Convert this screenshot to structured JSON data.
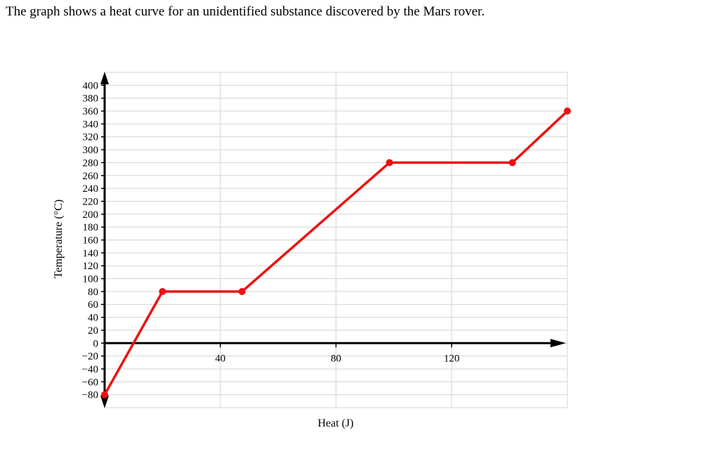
{
  "question": "The graph shows a heat curve for an unidentified substance discovered by the Mars rover.",
  "chart_data": {
    "type": "line",
    "xlabel": "Heat (J)",
    "ylabel": "Temperature (°C)",
    "xlim": [
      0,
      160
    ],
    "ylim": [
      -100,
      420
    ],
    "x_ticks": [
      40,
      80,
      120
    ],
    "x_tick_labels": [
      "40",
      "80",
      "120"
    ],
    "y_ticks": [
      -80,
      -60,
      -40,
      -20,
      0,
      20,
      40,
      60,
      80,
      100,
      120,
      140,
      160,
      180,
      200,
      220,
      240,
      260,
      280,
      300,
      320,
      340,
      360,
      380,
      400
    ],
    "y_tick_labels": [
      "−80",
      "−60",
      "−40",
      "−20",
      "0",
      "20",
      "40",
      "60",
      "80",
      "100",
      "120",
      "140",
      "160",
      "180",
      "200",
      "220",
      "240",
      "260",
      "280",
      "300",
      "320",
      "340",
      "360",
      "380",
      "400"
    ],
    "grid": true,
    "series": [
      {
        "color": "#ee1111",
        "points": [
          {
            "x": 0,
            "y": -80
          },
          {
            "x": 20,
            "y": 80
          },
          {
            "x": 47.5,
            "y": 80
          },
          {
            "x": 98.5,
            "y": 280
          },
          {
            "x": 141,
            "y": 280
          },
          {
            "x": 160,
            "y": 360
          }
        ]
      }
    ]
  }
}
